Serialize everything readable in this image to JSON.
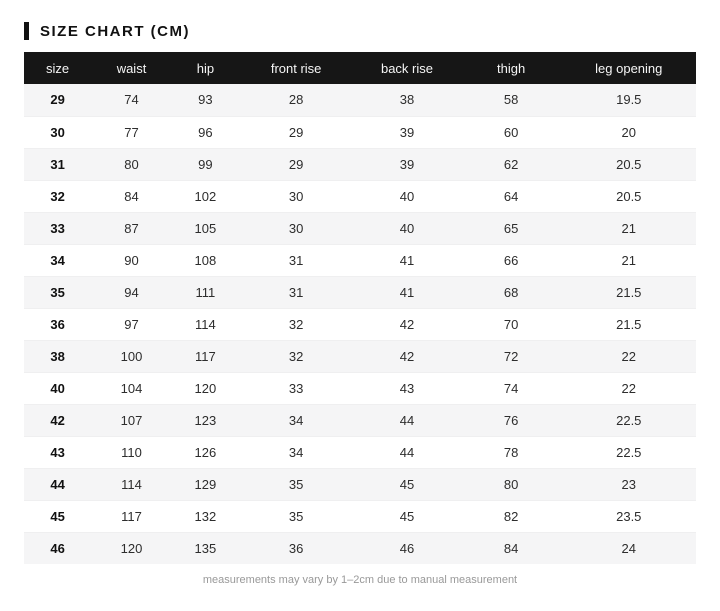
{
  "title": "SIZE CHART (CM)",
  "footnote": "measurements may vary by 1–2cm due to manual measurement",
  "colors": {
    "accent_bar": "#111111",
    "header_bg": "#161616",
    "header_text": "#f5f5f5",
    "row_alt_bg": "#f5f5f6",
    "row_bg": "#ffffff",
    "cell_text": "#2d2d2d",
    "footnote_text": "#999999"
  },
  "chart_data": {
    "type": "table",
    "title": "SIZE CHART (CM)",
    "columns": [
      "size",
      "waist",
      "hip",
      "front rise",
      "back rise",
      "thigh",
      "leg opening"
    ],
    "rows": [
      [
        "29",
        "74",
        "93",
        "28",
        "38",
        "58",
        "19.5"
      ],
      [
        "30",
        "77",
        "96",
        "29",
        "39",
        "60",
        "20"
      ],
      [
        "31",
        "80",
        "99",
        "29",
        "39",
        "62",
        "20.5"
      ],
      [
        "32",
        "84",
        "102",
        "30",
        "40",
        "64",
        "20.5"
      ],
      [
        "33",
        "87",
        "105",
        "30",
        "40",
        "65",
        "21"
      ],
      [
        "34",
        "90",
        "108",
        "31",
        "41",
        "66",
        "21"
      ],
      [
        "35",
        "94",
        "111",
        "31",
        "41",
        "68",
        "21.5"
      ],
      [
        "36",
        "97",
        "114",
        "32",
        "42",
        "70",
        "21.5"
      ],
      [
        "38",
        "100",
        "117",
        "32",
        "42",
        "72",
        "22"
      ],
      [
        "40",
        "104",
        "120",
        "33",
        "43",
        "74",
        "22"
      ],
      [
        "42",
        "107",
        "123",
        "34",
        "44",
        "76",
        "22.5"
      ],
      [
        "43",
        "110",
        "126",
        "34",
        "44",
        "78",
        "22.5"
      ],
      [
        "44",
        "114",
        "129",
        "35",
        "45",
        "80",
        "23"
      ],
      [
        "45",
        "117",
        "132",
        "35",
        "45",
        "82",
        "23.5"
      ],
      [
        "46",
        "120",
        "135",
        "36",
        "46",
        "84",
        "24"
      ]
    ],
    "footnote": "measurements may vary by 1–2cm due to manual measurement"
  }
}
